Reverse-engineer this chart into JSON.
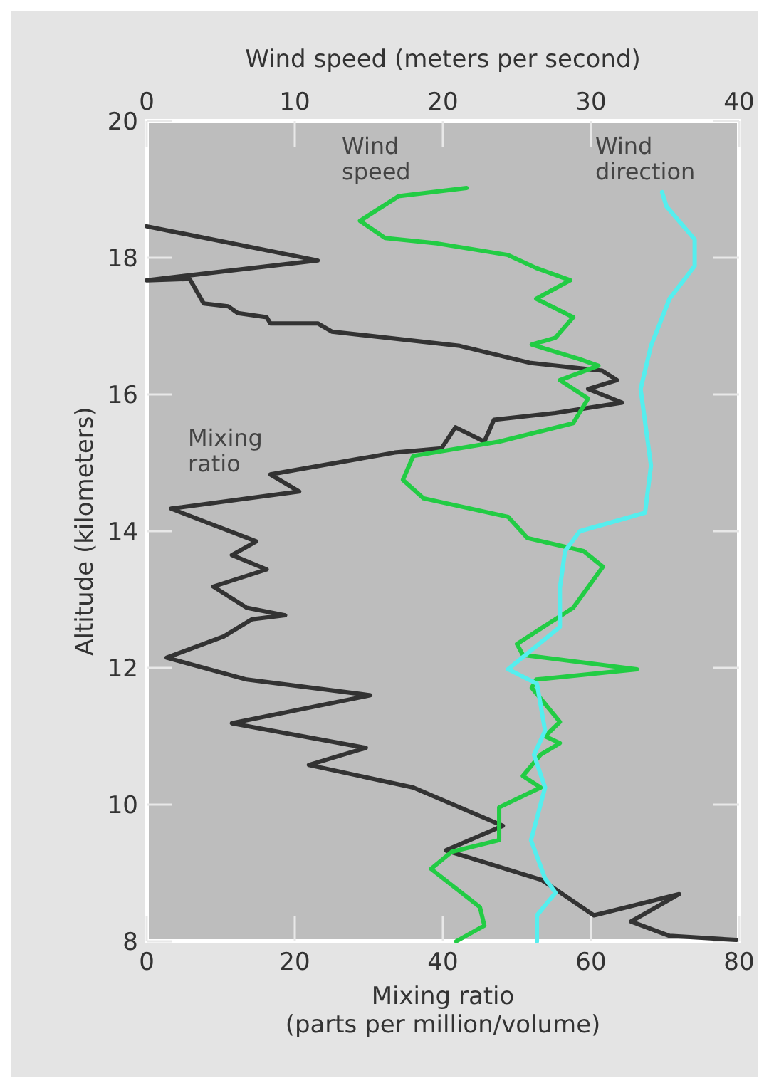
{
  "chart_data": {
    "type": "line",
    "xlabel": "Mixing ratio (parts per million/volume)",
    "x2label": "Wind speed (meters per second)",
    "ylabel": "Altitude (kilometers)",
    "xlim": [
      0,
      80
    ],
    "xticks": [
      0,
      20,
      40,
      60,
      80
    ],
    "x2lim": [
      0,
      40
    ],
    "x2ticks": [
      0,
      10,
      20,
      30,
      40
    ],
    "ylim": [
      8,
      20
    ],
    "yticks": [
      8,
      10,
      12,
      14,
      16,
      18,
      20
    ],
    "series": [
      {
        "name": "Mixing ratio",
        "color": "#333333",
        "x": [
          0,
          23.1,
          0,
          5.8,
          7.7,
          11.0,
          12.3,
          16.2,
          16.7,
          23.1,
          25.0,
          42.3,
          51.9,
          61.5,
          63.5,
          59.6,
          64.2,
          55.2,
          46.9,
          45.6,
          41.7,
          39.8,
          33.5,
          16.7,
          20.6,
          3.3,
          14.8,
          11.5,
          16.2,
          9.0,
          13.5,
          18.7,
          14.2,
          10.4,
          2.7,
          13.5,
          30.2,
          11.5,
          29.6,
          21.9,
          36.0,
          48.1,
          40.4,
          53.3,
          60.4,
          71.9,
          65.4,
          70.6,
          79.6
        ],
        "values": [
          18.46,
          17.96,
          17.67,
          17.69,
          17.33,
          17.29,
          17.19,
          17.13,
          17.04,
          17.04,
          16.92,
          16.71,
          16.46,
          16.35,
          16.21,
          16.08,
          15.88,
          15.73,
          15.63,
          15.31,
          15.52,
          15.21,
          15.15,
          14.83,
          14.58,
          14.33,
          13.85,
          13.65,
          13.44,
          13.19,
          12.88,
          12.77,
          12.71,
          12.46,
          12.15,
          11.83,
          11.6,
          11.19,
          10.83,
          10.58,
          10.25,
          9.69,
          9.33,
          8.9,
          8.38,
          8.69,
          8.29,
          8.08,
          8.02
        ]
      },
      {
        "name": "Wind speed",
        "color": "#22cc44",
        "axis": "x2",
        "x": [
          21.6,
          17.0,
          14.4,
          16.1,
          19.6,
          24.4,
          26.3,
          28.6,
          26.3,
          28.8,
          27.6,
          26.0,
          29.2,
          30.5,
          27.9,
          29.8,
          28.8,
          23.8,
          18.0,
          17.3,
          18.7,
          24.4,
          25.7,
          29.5,
          30.8,
          28.8,
          25.0,
          25.4,
          33.1,
          26.3,
          26.0,
          27.9,
          26.9,
          27.9,
          26.6,
          25.4,
          26.6,
          23.8,
          23.8,
          20.6,
          19.2,
          22.5,
          22.8,
          20.9
        ],
        "values": [
          19.02,
          18.9,
          18.54,
          18.29,
          18.21,
          18.04,
          17.85,
          17.67,
          17.4,
          17.13,
          16.83,
          16.73,
          16.52,
          16.42,
          16.21,
          15.94,
          15.58,
          15.31,
          15.1,
          14.75,
          14.48,
          14.21,
          13.9,
          13.71,
          13.48,
          12.88,
          12.35,
          12.19,
          11.98,
          11.83,
          11.71,
          11.21,
          11.0,
          10.9,
          10.73,
          10.42,
          10.25,
          9.96,
          9.48,
          9.31,
          9.06,
          8.5,
          8.23,
          8.0
        ]
      },
      {
        "name": "Wind direction",
        "color": "#55eeee",
        "x": [
          69.6,
          70.2,
          74.0,
          74.0,
          70.6,
          68.1,
          66.7,
          68.1,
          67.3,
          58.5,
          56.5,
          55.8,
          55.8,
          48.8,
          52.7,
          53.8,
          52.3,
          53.8,
          51.9,
          53.8,
          55.2,
          52.7,
          52.7
        ],
        "values": [
          18.96,
          18.75,
          18.27,
          17.88,
          17.4,
          16.71,
          16.08,
          14.96,
          14.27,
          14.0,
          13.71,
          13.17,
          12.6,
          11.98,
          11.77,
          11.08,
          10.73,
          10.25,
          9.48,
          8.92,
          8.71,
          8.38,
          8.0
        ]
      }
    ]
  }
}
